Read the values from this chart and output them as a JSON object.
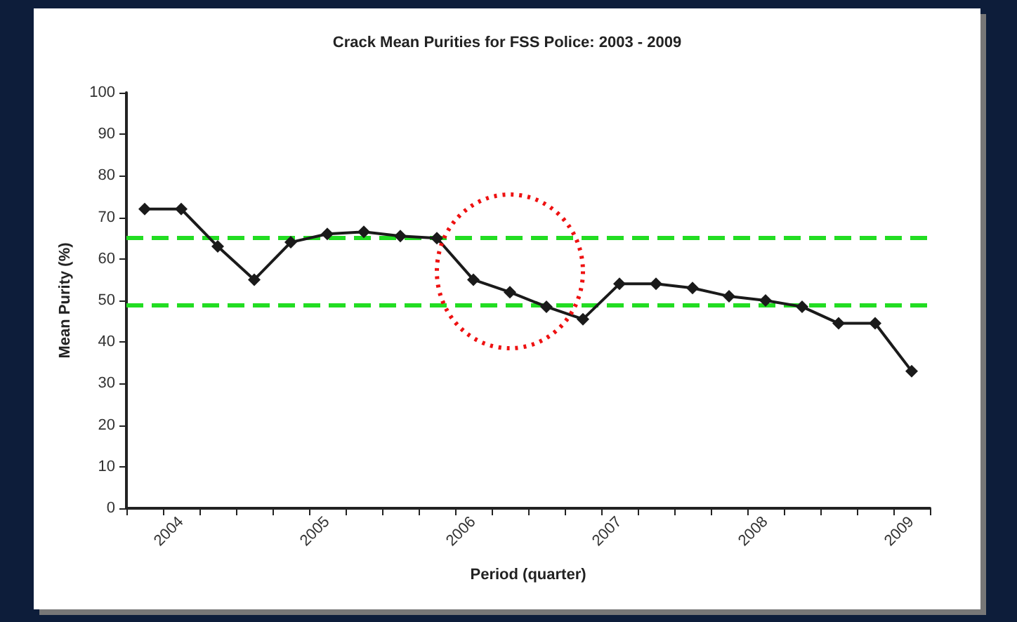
{
  "chart_data": {
    "type": "line",
    "title": "Crack Mean Purities for FSS Police: 2003 - 2009",
    "xlabel": "Period (quarter)",
    "ylabel": "Mean Purity (%)",
    "categories": [
      null,
      "2004",
      null,
      null,
      null,
      "2005",
      null,
      null,
      null,
      "2006",
      null,
      null,
      null,
      "2007",
      null,
      null,
      null,
      "2008",
      null,
      null,
      null,
      "2009"
    ],
    "series": [
      {
        "color": "#1a1a1a",
        "values": [
          72,
          72,
          63,
          55,
          64,
          66,
          66.5,
          65.5,
          65,
          55,
          52,
          48.5,
          45.5,
          54,
          54,
          53,
          51,
          50,
          48.5,
          44.5,
          44.5,
          33
        ]
      }
    ],
    "ylim": [
      0,
      100
    ],
    "yticks": [
      0,
      10,
      20,
      30,
      40,
      50,
      60,
      70,
      80,
      90,
      100
    ],
    "ref_lines": [
      {
        "axis": "y",
        "value": 65,
        "color": "#22dd22",
        "line_style": "dashed"
      },
      {
        "axis": "y",
        "value": 49,
        "color": "#22dd22",
        "line_style": "dashed"
      }
    ],
    "grid": false,
    "marker": "diamond",
    "line_style": "solid"
  }
}
